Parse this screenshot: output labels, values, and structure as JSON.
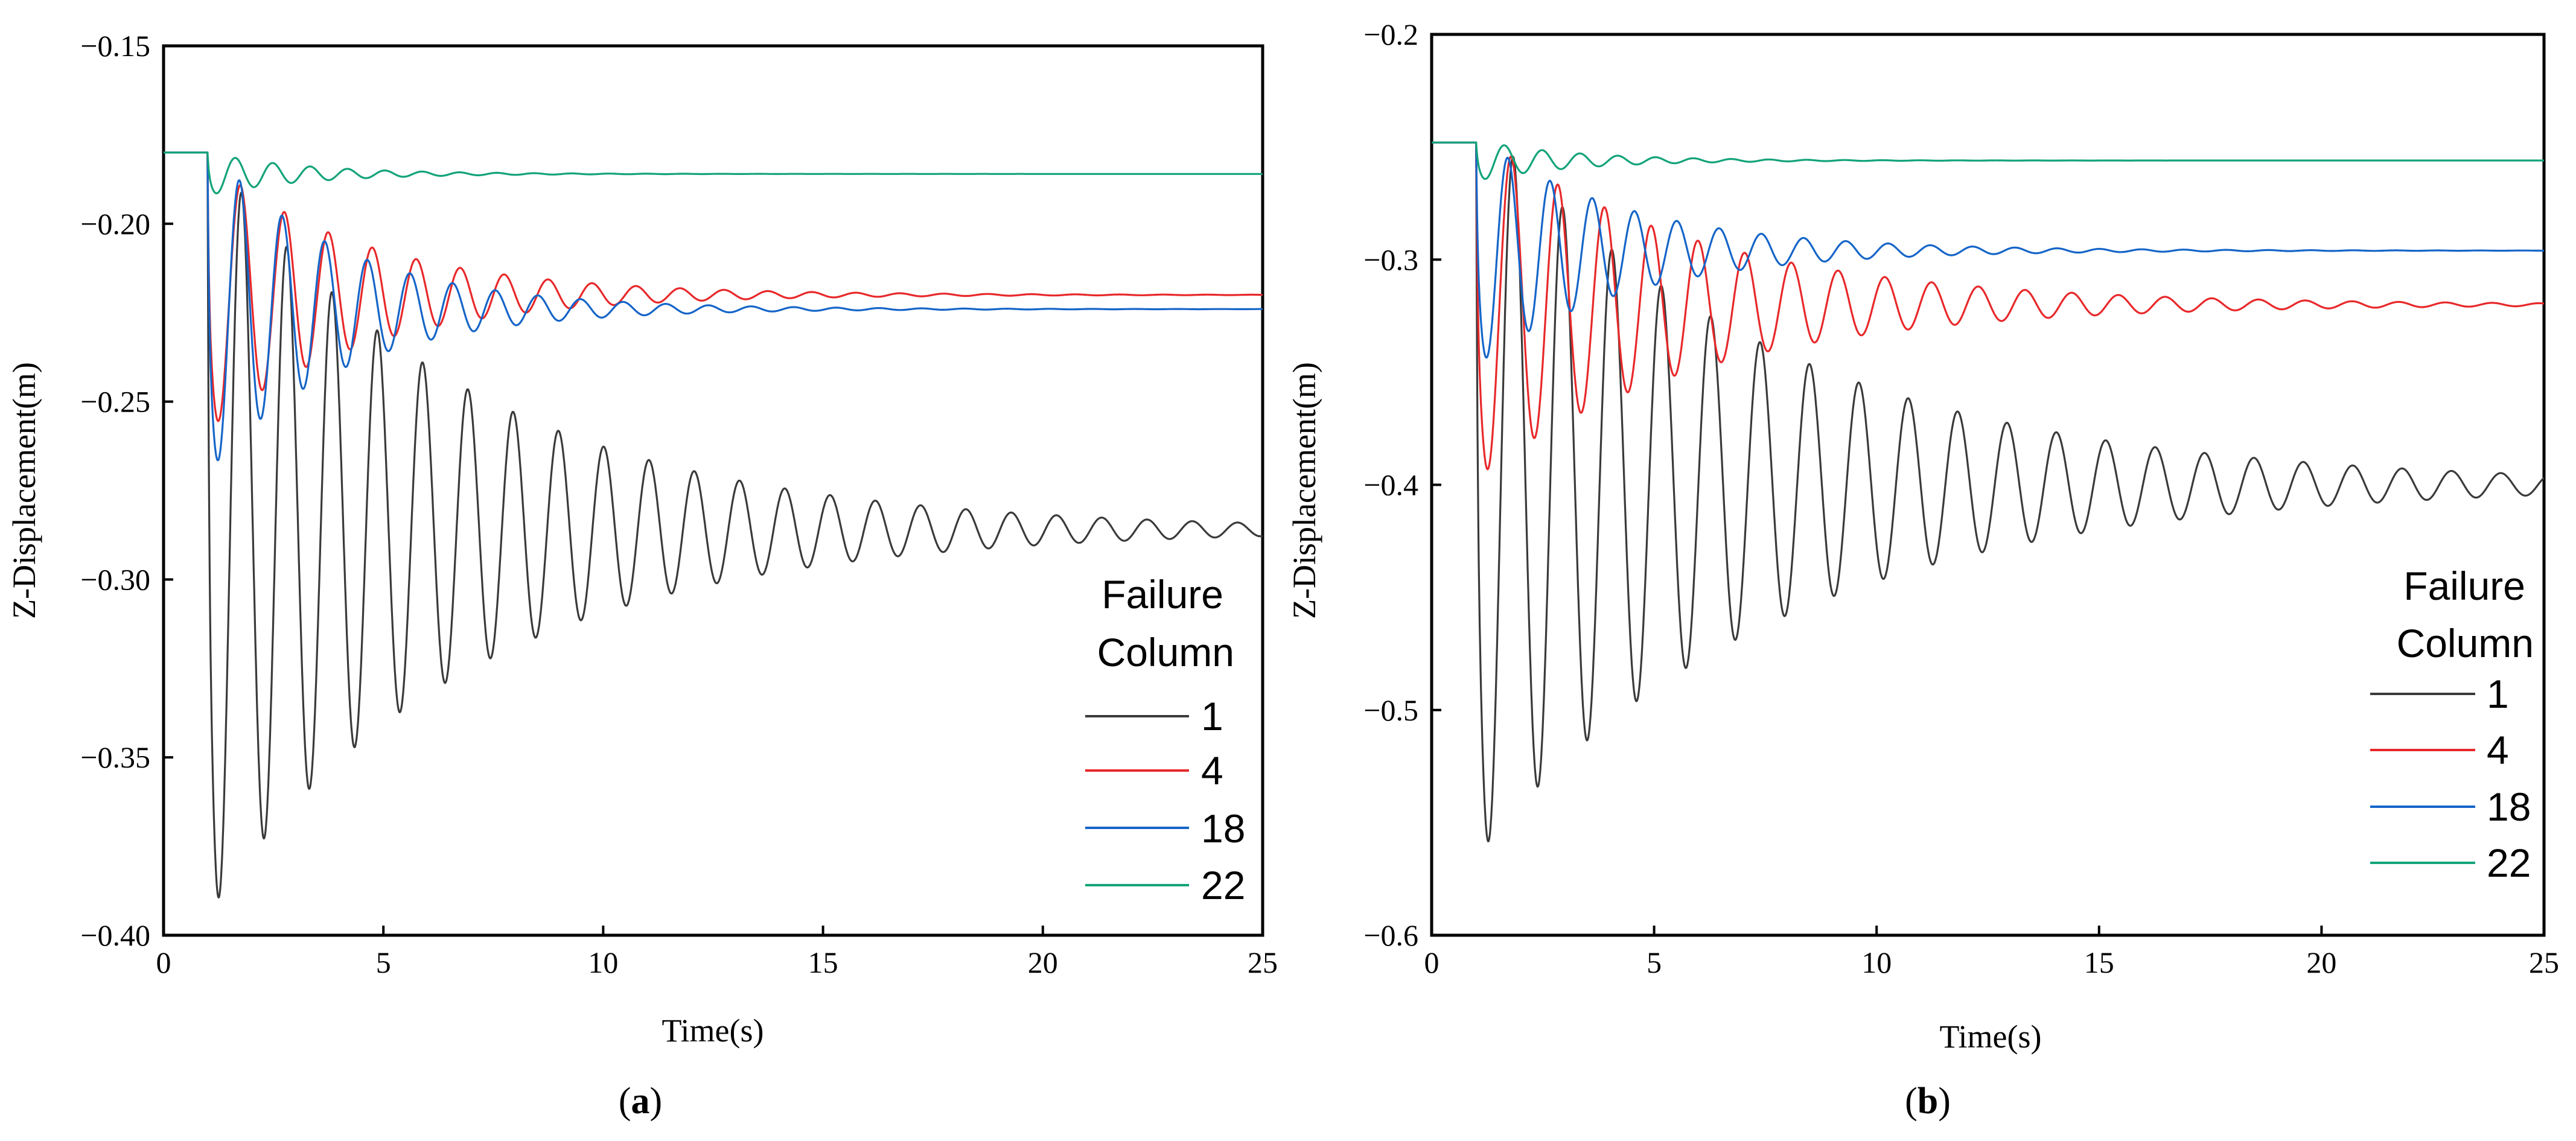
{
  "chart_data": [
    {
      "type": "line",
      "panel": "a",
      "xlabel": "Time(s)",
      "ylabel": "Z-Displacement(m)",
      "xlim": [
        0,
        25
      ],
      "ylim": [
        -0.4,
        -0.15
      ],
      "xticks": [
        0,
        5,
        10,
        15,
        20,
        25
      ],
      "xtick_labels": [
        "0",
        "5",
        "10",
        "15",
        "20",
        "25"
      ],
      "yticks": [
        -0.15,
        -0.2,
        -0.25,
        -0.3,
        -0.35,
        -0.4
      ],
      "ytick_labels": [
        "−0.15",
        "−0.20",
        "−0.25",
        "−0.30",
        "−0.35",
        "−0.40"
      ],
      "legend_title": [
        "Failure",
        "Column"
      ],
      "legend_position": "lower-right",
      "t_start": 1.0,
      "series": [
        {
          "name": "1",
          "color": "#3a3a3a",
          "initial": -0.18,
          "final": -0.286,
          "amplitude": 0.108,
          "period": 1.03,
          "decay": 0.17
        },
        {
          "name": "4",
          "color": "#e8282a",
          "initial": -0.18,
          "final": -0.22,
          "amplitude": 0.038,
          "period": 1.0,
          "decay": 0.28
        },
        {
          "name": "18",
          "color": "#1565c8",
          "initial": -0.18,
          "final": -0.224,
          "amplitude": 0.046,
          "period": 0.97,
          "decay": 0.33
        },
        {
          "name": "22",
          "color": "#13a37a",
          "initial": -0.18,
          "final": -0.186,
          "amplitude": 0.006,
          "period": 0.85,
          "decay": 0.45
        }
      ]
    },
    {
      "type": "line",
      "panel": "b",
      "xlabel": "Time(s)",
      "ylabel": "Z-Displacement(m)",
      "xlim": [
        0,
        25
      ],
      "ylim": [
        -0.6,
        -0.2
      ],
      "xticks": [
        0,
        5,
        10,
        15,
        20,
        25
      ],
      "xtick_labels": [
        "0",
        "5",
        "10",
        "15",
        "20",
        "25"
      ],
      "yticks": [
        -0.2,
        -0.3,
        -0.4,
        -0.5,
        -0.6
      ],
      "ytick_labels": [
        "−0.2",
        "−0.3",
        "−0.4",
        "−0.5",
        "−0.6"
      ],
      "legend_title": [
        "Failure",
        "Column"
      ],
      "legend_position": "lower-right",
      "t_start": 1.0,
      "series": [
        {
          "name": "1",
          "color": "#3a3a3a",
          "initial": -0.248,
          "final": -0.4,
          "amplitude": 0.165,
          "period": 1.11,
          "decay": 0.15
        },
        {
          "name": "4",
          "color": "#e8282a",
          "initial": -0.248,
          "final": -0.32,
          "amplitude": 0.077,
          "period": 1.05,
          "decay": 0.2
        },
        {
          "name": "18",
          "color": "#1565c8",
          "initial": -0.248,
          "final": -0.296,
          "amplitude": 0.051,
          "period": 0.95,
          "decay": 0.3
        },
        {
          "name": "22",
          "color": "#13a37a",
          "initial": -0.248,
          "final": -0.256,
          "amplitude": 0.009,
          "period": 0.85,
          "decay": 0.45
        }
      ]
    }
  ],
  "captions": {
    "a": {
      "open": "(",
      "letter": "a",
      "close": ")"
    },
    "b": {
      "open": "(",
      "letter": "b",
      "close": ")"
    }
  }
}
